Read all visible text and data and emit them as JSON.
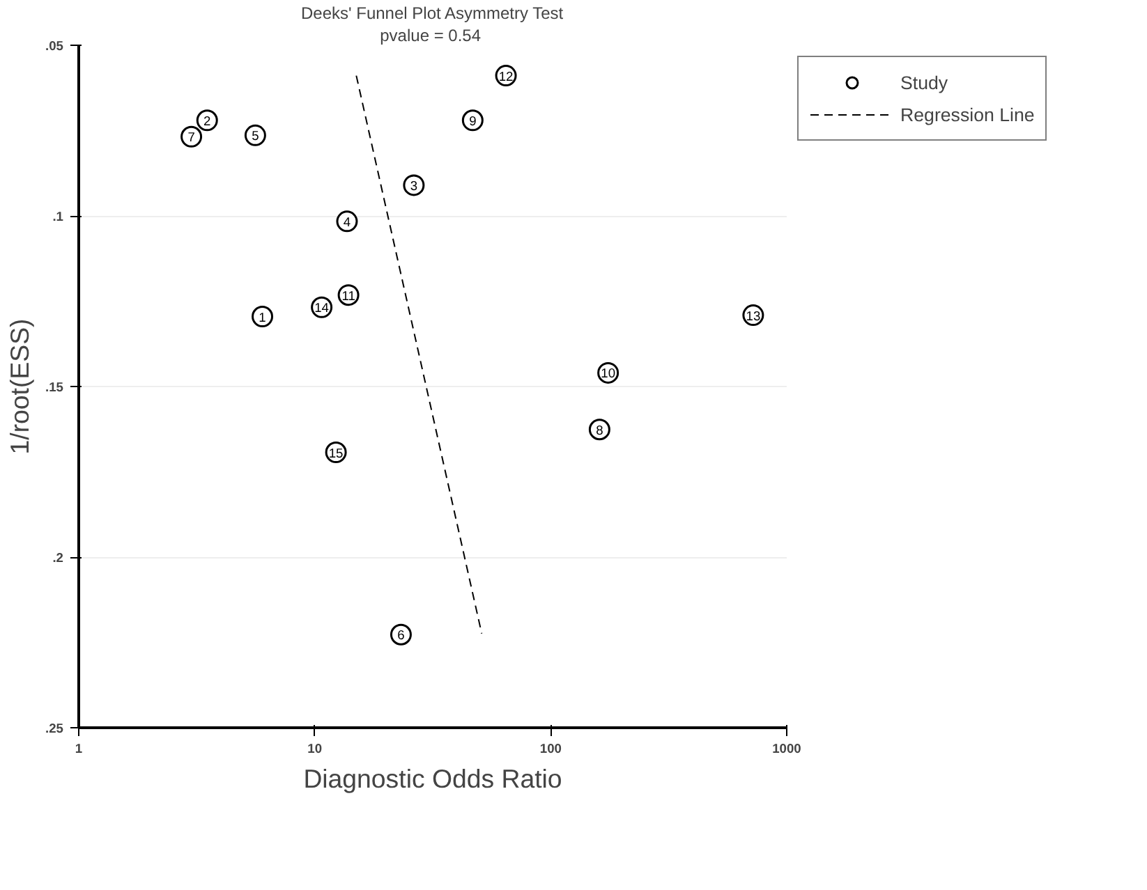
{
  "chart_data": {
    "type": "scatter",
    "title": "Deeks' Funnel Plot Asymmetry Test",
    "subtitle": "pvalue =  0.54",
    "xlabel": "Diagnostic Odds Ratio",
    "ylabel": "1/root(ESS)",
    "log": "x",
    "xlim": [
      1,
      1000
    ],
    "xticks": [
      1,
      10,
      100,
      1000
    ],
    "ylim": [
      0.25,
      0.05
    ],
    "yticks": [
      {
        "value": 0.05,
        "label": ".05"
      },
      {
        "value": 0.1,
        "label": ".1"
      },
      {
        "value": 0.15,
        "label": ".15"
      },
      {
        "value": 0.2,
        "label": ".2"
      },
      {
        "value": 0.25,
        "label": ".25"
      }
    ],
    "grid": "y",
    "legend": "top right",
    "series": [
      {
        "name": "Study",
        "marker": "circle",
        "color": "#000000",
        "x": [
          6.0,
          3.5,
          26.3,
          13.7,
          5.6,
          23.2,
          3.0,
          161,
          46.7,
          175,
          13.9,
          64.6,
          721,
          10.7,
          12.3
        ],
        "values": [
          0.1295,
          0.072,
          0.091,
          0.1016,
          0.0764,
          0.2227,
          0.0768,
          0.1626,
          0.072,
          0.146,
          0.1232,
          0.0589,
          0.1291,
          0.1268,
          0.1693
        ]
      },
      {
        "name": "Regression Line",
        "type": "line",
        "marker": "none",
        "line_style": "dashed",
        "color": "#000000",
        "x": [
          15.0,
          51
        ],
        "values": [
          0.0589,
          0.2224
        ]
      }
    ],
    "annotations": [
      {
        "text": "1",
        "x": 6.0,
        "y": 0.1295
      },
      {
        "text": "2",
        "x": 3.5,
        "y": 0.072
      },
      {
        "text": "3",
        "x": 26.3,
        "y": 0.091
      },
      {
        "text": "4",
        "x": 13.7,
        "y": 0.1016
      },
      {
        "text": "5",
        "x": 5.6,
        "y": 0.0764
      },
      {
        "text": "6",
        "x": 23.2,
        "y": 0.2227
      },
      {
        "text": "7",
        "x": 3.0,
        "y": 0.0768
      },
      {
        "text": "8",
        "x": 161,
        "y": 0.1626
      },
      {
        "text": "9",
        "x": 46.7,
        "y": 0.072
      },
      {
        "text": "10",
        "x": 175,
        "y": 0.146
      },
      {
        "text": "11",
        "x": 13.9,
        "y": 0.1232
      },
      {
        "text": "12",
        "x": 64.6,
        "y": 0.0589
      },
      {
        "text": "13",
        "x": 721,
        "y": 0.1291
      },
      {
        "text": "14",
        "x": 10.7,
        "y": 0.1268
      },
      {
        "text": "15",
        "x": 12.3,
        "y": 0.1693
      }
    ]
  }
}
